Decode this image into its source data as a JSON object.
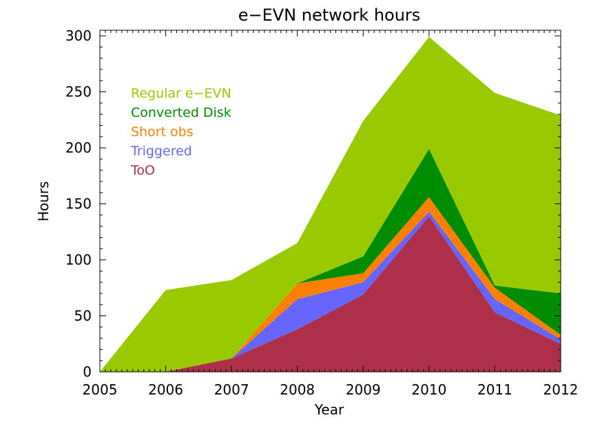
{
  "chart_data": {
    "type": "area",
    "stacked": true,
    "title": "e−EVN network hours",
    "xlabel": "Year",
    "ylabel": "Hours",
    "xlim": [
      2005,
      2012
    ],
    "ylim": [
      0,
      305
    ],
    "x": [
      2005,
      2006,
      2007,
      2008,
      2009,
      2010,
      2011,
      2012
    ],
    "xticks": [
      "2005",
      "2006",
      "2007",
      "2008",
      "2009",
      "2010",
      "2011",
      "2012"
    ],
    "yticks": [
      "0",
      "50",
      "100",
      "150",
      "200",
      "250",
      "300"
    ],
    "ytick_values": [
      0,
      50,
      100,
      150,
      200,
      250,
      300
    ],
    "legend_position": "upper-left",
    "grid": false,
    "series": [
      {
        "name": "ToO",
        "color": "#ad2f4a",
        "values": [
          0,
          0,
          12,
          38,
          69,
          139,
          53,
          25
        ]
      },
      {
        "name": "Triggered",
        "color": "#6666ff",
        "values": [
          0,
          0,
          0,
          27,
          11,
          4,
          12,
          4
        ]
      },
      {
        "name": "Short obs",
        "color": "#ff8000",
        "values": [
          0,
          0,
          0,
          14,
          8,
          13,
          10,
          4
        ]
      },
      {
        "name": "Converted Disk",
        "color": "#008c00",
        "values": [
          0,
          0,
          0,
          0,
          15,
          43,
          2,
          37
        ]
      },
      {
        "name": "Regular e−EVN",
        "color": "#99c900",
        "values": [
          0,
          73,
          70,
          36,
          121,
          100,
          172,
          159
        ]
      }
    ],
    "legend_order": [
      "Regular e−EVN",
      "Converted Disk",
      "Short obs",
      "Triggered",
      "ToO"
    ]
  }
}
